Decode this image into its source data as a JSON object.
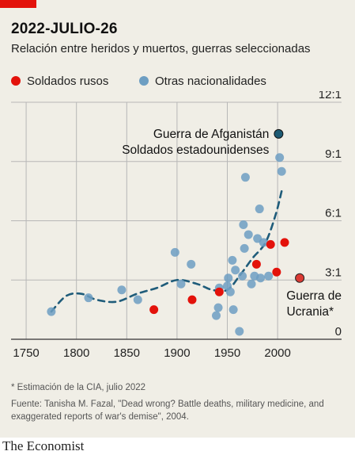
{
  "header": {
    "title": "2022-JULIO-26",
    "subtitle": "Relación entre heridos y muertos, guerras seleccionadas"
  },
  "footnote": "* Estimación de la CIA, julio 2022",
  "source": "Fuente: Tanisha M. Fazal, \"Dead wrong? Battle deaths, military medicine, and exaggerated reports of war's demise\", 2004.",
  "brand": "The Economist",
  "colors": {
    "background": "#f0eee6",
    "russian": "#e3120b",
    "other": "#6d9ec2",
    "ukraine": "#db3a34",
    "afghanistan": "#1d5a73",
    "trend": "#1f5c7a",
    "grid": "#b7b7b7",
    "axis": "#333333",
    "brand_red": "#e3120b"
  },
  "chart_data": {
    "type": "scatter",
    "title": "Relación entre heridos y muertos, guerras seleccionadas",
    "xlim": [
      1735,
      2040
    ],
    "ylim": [
      0,
      12
    ],
    "x_ticks": [
      1750,
      1800,
      1850,
      1900,
      1950,
      2000
    ],
    "y_ticks": [
      0,
      3,
      6,
      9,
      12
    ],
    "y_tick_labels": [
      "0",
      "3:1",
      "6:1",
      "9:1",
      "12:1"
    ],
    "grid": true,
    "legend_position": "top-left",
    "series": [
      {
        "name": "Soldados rusos",
        "points": [
          [
            1877,
            1.5
          ],
          [
            1915,
            2.0
          ],
          [
            1942,
            2.4
          ],
          [
            1979,
            3.8
          ],
          [
            1993,
            4.8
          ],
          [
            1999,
            3.4
          ],
          [
            2007,
            4.9
          ]
        ]
      },
      {
        "name": "Otras nacionalidades",
        "points": [
          [
            1775,
            1.4
          ],
          [
            1812,
            2.1
          ],
          [
            1845,
            2.5
          ],
          [
            1861,
            2.0
          ],
          [
            1898,
            4.4
          ],
          [
            1904,
            2.8
          ],
          [
            1914,
            3.8
          ],
          [
            1939,
            1.2
          ],
          [
            1941,
            1.6
          ],
          [
            1942,
            2.6
          ],
          [
            1950,
            2.7
          ],
          [
            1951,
            3.1
          ],
          [
            1953,
            2.4
          ],
          [
            1955,
            4.0
          ],
          [
            1956,
            1.5
          ],
          [
            1958,
            3.5
          ],
          [
            1962,
            0.4
          ],
          [
            1965,
            3.2
          ],
          [
            1966,
            5.8
          ],
          [
            1967,
            4.6
          ],
          [
            1968,
            8.2
          ],
          [
            1971,
            5.3
          ],
          [
            1974,
            2.8
          ],
          [
            1977,
            3.2
          ],
          [
            1980,
            5.1
          ],
          [
            1982,
            6.6
          ],
          [
            1983,
            3.1
          ],
          [
            1986,
            4.9
          ],
          [
            1991,
            3.2
          ],
          [
            2002,
            9.2
          ],
          [
            2004,
            8.5
          ]
        ]
      },
      {
        "name": "Guerra de Ucrania*",
        "points": [
          [
            2022,
            3.1
          ]
        ]
      },
      {
        "name": "Guerra de Afganistán Soldados estadounidenses",
        "points": [
          [
            2001,
            10.4
          ]
        ]
      }
    ],
    "trend_line": [
      [
        1775,
        1.4
      ],
      [
        1790,
        2.2
      ],
      [
        1805,
        2.3
      ],
      [
        1820,
        2.0
      ],
      [
        1840,
        1.9
      ],
      [
        1860,
        2.3
      ],
      [
        1880,
        2.6
      ],
      [
        1900,
        3.0
      ],
      [
        1920,
        2.8
      ],
      [
        1935,
        2.5
      ],
      [
        1950,
        2.5
      ],
      [
        1962,
        3.2
      ],
      [
        1975,
        4.1
      ],
      [
        1988,
        4.9
      ],
      [
        1998,
        6.3
      ],
      [
        2004,
        7.5
      ]
    ],
    "annotations": {
      "afghanistan": [
        "Guerra de Afganistán",
        "Soldados estadounidenses"
      ],
      "ukraine": [
        "Guerra de",
        "Ucrania*"
      ]
    }
  }
}
